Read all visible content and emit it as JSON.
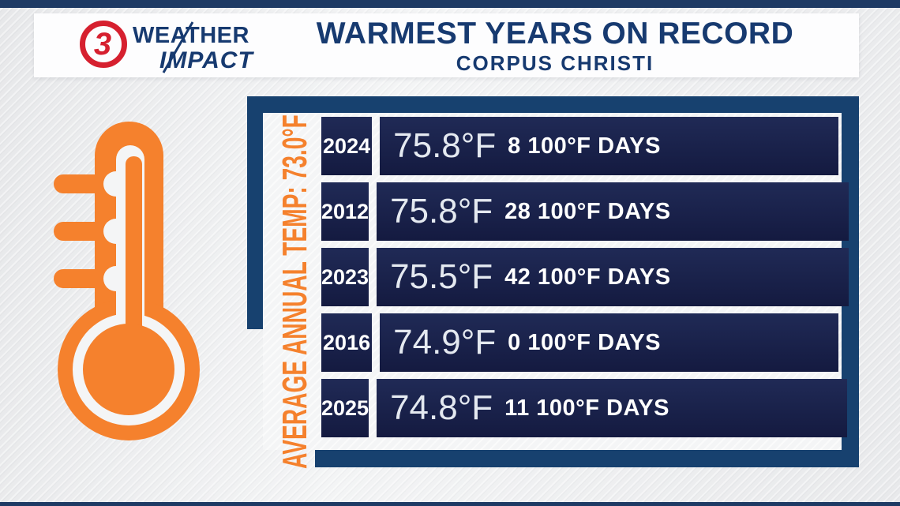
{
  "colors": {
    "navy-strip": "#1e3a64",
    "navy-frame": "#17416f",
    "navy-row-top": "#202a56",
    "navy-row-bottom": "#141a40",
    "navy-text": "#173a70",
    "orange": "#f5812d",
    "logo-red": "#d6202f",
    "panel": "#f4f5f6",
    "band": "#fdfdfe",
    "temp-text": "#e4e9f0"
  },
  "header": {
    "logo": {
      "number": "3",
      "line1": "WEATHER",
      "line2": "IMPACT"
    },
    "title": "WARMEST YEARS ON RECORD",
    "subtitle": "CORPUS CHRISTI"
  },
  "annotation": {
    "text": "AVERAGE ANNUAL TEMP: 73.0°F"
  },
  "table": {
    "rows": [
      {
        "year": "2024",
        "temp": "75.8°F",
        "days": "8 100°F DAYS"
      },
      {
        "year": "2012",
        "temp": "75.8°F",
        "days": "28 100°F DAYS"
      },
      {
        "year": "2023",
        "temp": "75.5°F",
        "days": "42 100°F DAYS"
      },
      {
        "year": "2016",
        "temp": "74.9°F",
        "days": "0 100°F DAYS"
      },
      {
        "year": "2025",
        "temp": "74.8°F",
        "days": "11 100°F DAYS"
      }
    ]
  },
  "chart_data": {
    "type": "table",
    "title": "WARMEST YEARS ON RECORD",
    "subtitle": "CORPUS CHRISTI",
    "annotation": "AVERAGE ANNUAL TEMP: 73.0°F",
    "columns": [
      "year",
      "avg_annual_temp_f",
      "days_at_or_above_100f"
    ],
    "rows": [
      {
        "year": 2024,
        "avg_annual_temp_f": 75.8,
        "days_at_or_above_100f": 8
      },
      {
        "year": 2012,
        "avg_annual_temp_f": 75.8,
        "days_at_or_above_100f": 28
      },
      {
        "year": 2023,
        "avg_annual_temp_f": 75.5,
        "days_at_or_above_100f": 42
      },
      {
        "year": 2016,
        "avg_annual_temp_f": 74.9,
        "days_at_or_above_100f": 0
      },
      {
        "year": 2025,
        "avg_annual_temp_f": 74.8,
        "days_at_or_above_100f": 11
      }
    ],
    "average_annual_temp_f": 73.0
  }
}
